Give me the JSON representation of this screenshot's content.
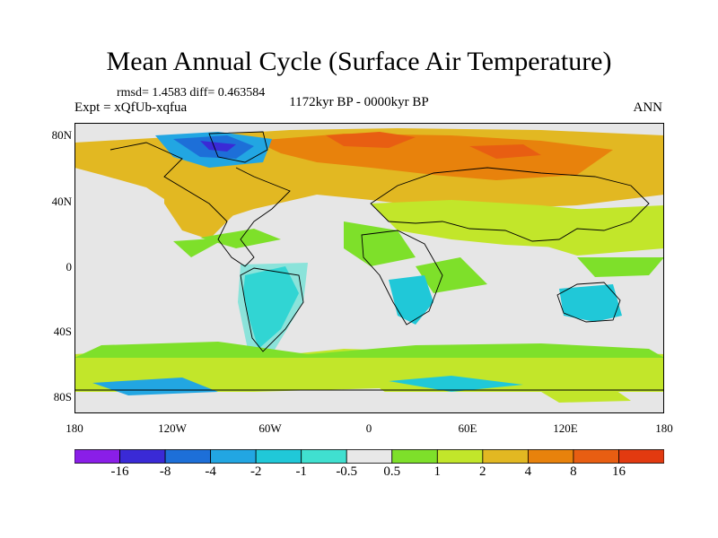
{
  "title": "Mean Annual Cycle (Surface Air Temperature)",
  "stats": "rmsd= 1.4583 diff= 0.463584",
  "experiment": "Expt = xQfUb-xqfua",
  "period": "1172kyr BP - 0000kyr BP",
  "season": "ANN",
  "lat_labels": [
    "80N",
    "40N",
    "0",
    "40S",
    "80S"
  ],
  "lon_labels": [
    "180",
    "120W",
    "60W",
    "0",
    "60E",
    "120E",
    "180"
  ],
  "colorbar": {
    "labels": [
      "-16",
      "-8",
      "-4",
      "-2",
      "-1",
      "-0.5",
      "0.5",
      "1",
      "2",
      "4",
      "8",
      "16"
    ],
    "colors": [
      "#8a1ee8",
      "#3a2ad6",
      "#1d6fd8",
      "#22a6e2",
      "#20c8d8",
      "#40e0d0",
      "#e8e8e8",
      "#7ee02a",
      "#c2e62a",
      "#e2b822",
      "#e8820c",
      "#e85e12",
      "#e23a10"
    ]
  },
  "map": {
    "background_color": "#e6e6e6"
  }
}
